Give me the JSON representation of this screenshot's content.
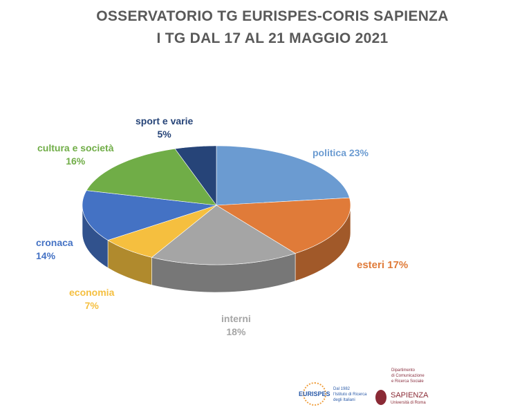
{
  "chart_data": {
    "type": "pie",
    "title": "OSSERVATORIO  TG EURISPES-CORIS SAPIENZA",
    "subtitle": "I TG DAL 17 AL 21 MAGGIO 2021",
    "slices": [
      {
        "name": "politica",
        "value": 23,
        "label": "23%",
        "color": "#6b9bd1"
      },
      {
        "name": "esteri",
        "value": 17,
        "label": "17%",
        "color": "#e07b39"
      },
      {
        "name": "interni",
        "value": 18,
        "label": "18%",
        "color": "#a5a5a5"
      },
      {
        "name": "economia",
        "value": 7,
        "label": "7%",
        "color": "#f5bf3f"
      },
      {
        "name": "cronaca",
        "value": 14,
        "label": "14%",
        "color": "#4472c4"
      },
      {
        "name": "cultura e società",
        "value": 16,
        "label": "16%",
        "color": "#70ad47"
      },
      {
        "name": "sport e varie",
        "value": 5,
        "label": "5%",
        "color": "#264478"
      }
    ],
    "style": "3d-pie"
  },
  "logos": {
    "eurispes": {
      "name": "EURISPES",
      "tagline": [
        "Dal 1982",
        "l'Istituto di Ricerca",
        "degli Italiani"
      ]
    },
    "sapienza": {
      "dept": [
        "Dipartimento",
        "di Comunicazione",
        "e Ricerca Sociale"
      ],
      "name": "SAPIENZA",
      "sub": "Università di Roma"
    }
  }
}
